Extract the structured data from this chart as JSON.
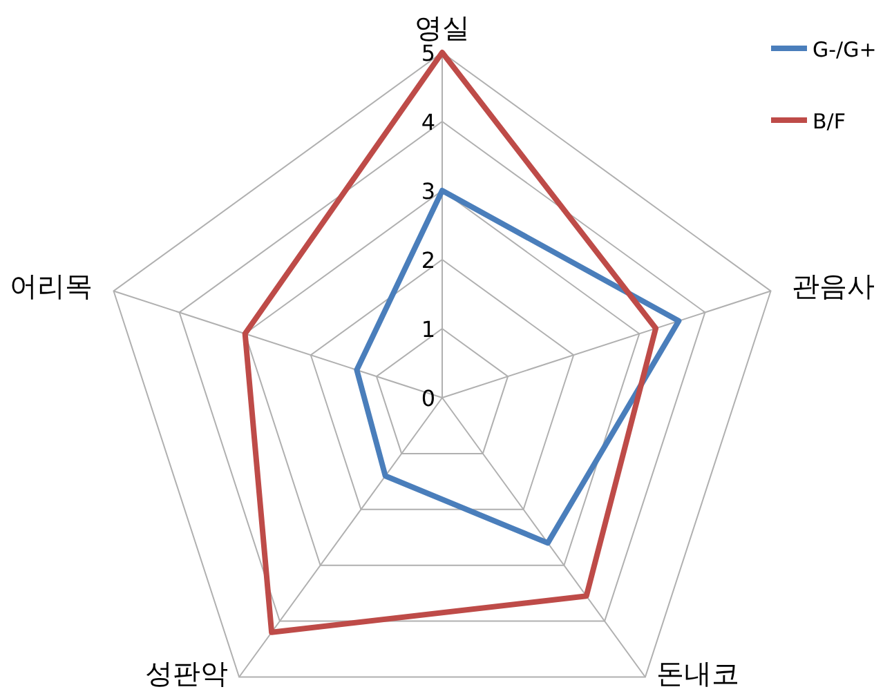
{
  "chart_data": {
    "type": "radar",
    "categories": [
      "영실",
      "관음사",
      "돈내코",
      "성판악",
      "어리목"
    ],
    "series": [
      {
        "name": "G-/G+",
        "color": "#4a7ebb",
        "values": [
          3.0,
          3.6,
          2.6,
          1.4,
          1.3
        ]
      },
      {
        "name": "B/F",
        "color": "#be4b48",
        "values": [
          5.0,
          3.25,
          3.55,
          4.2,
          3.0
        ]
      }
    ],
    "ylim": [
      0,
      5
    ],
    "yticks": [
      0,
      1,
      2,
      3,
      4,
      5
    ],
    "grid": true,
    "legend": "top right"
  }
}
